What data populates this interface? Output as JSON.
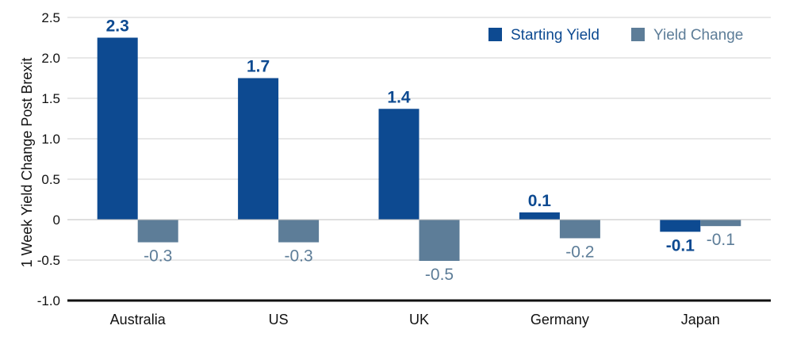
{
  "chart_data": {
    "type": "bar",
    "ylabel": "1 Week Yield Change Post Brexit",
    "ylim": [
      -1.0,
      2.5
    ],
    "yticks": [
      2.5,
      2.0,
      1.5,
      1.0,
      0.5,
      0,
      -0.5,
      -1.0
    ],
    "ytick_labels": [
      "2.5",
      "2.0",
      "1.5",
      "1.0",
      "0.5",
      "0",
      "-0.5",
      "-1.0"
    ],
    "categories": [
      "Australia",
      "US",
      "UK",
      "Germany",
      "Japan"
    ],
    "series": [
      {
        "name": "Starting Yield",
        "color": "#0d4a91",
        "values": [
          2.25,
          1.75,
          1.37,
          0.09,
          -0.15
        ],
        "labels": [
          "2.3",
          "1.7",
          "1.4",
          "0.1",
          "-0.1"
        ]
      },
      {
        "name": "Yield Change",
        "color": "#5d7d98",
        "values": [
          -0.28,
          -0.28,
          -0.51,
          -0.23,
          -0.08
        ],
        "labels": [
          "-0.3",
          "-0.3",
          "-0.5",
          "-0.2",
          "-0.1"
        ]
      }
    ],
    "grid": true,
    "legend": "top-right"
  }
}
